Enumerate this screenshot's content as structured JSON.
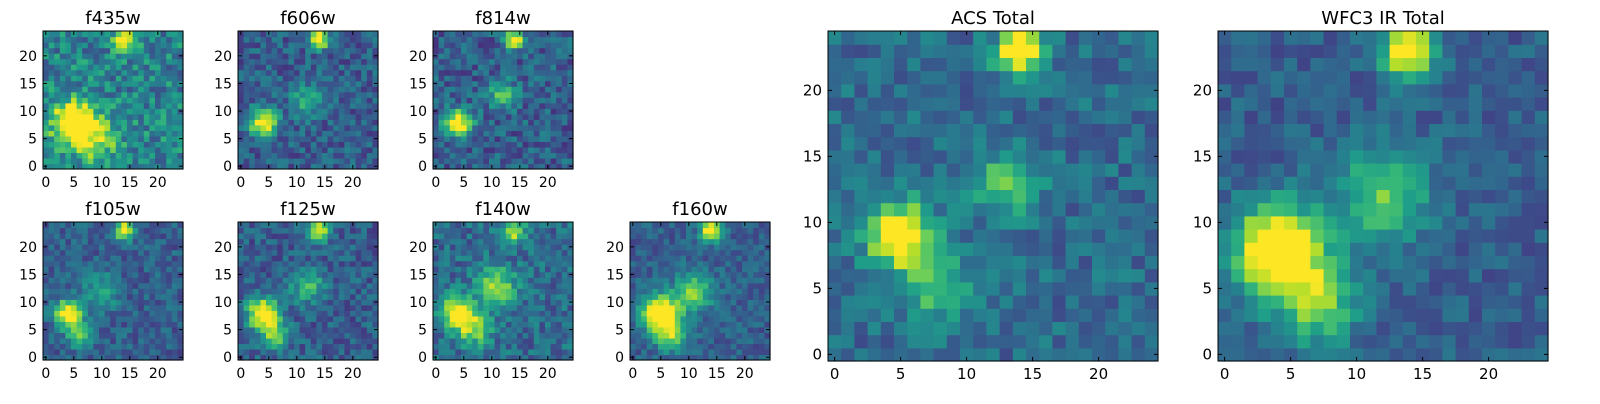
{
  "figure": {
    "colormap": [
      "#440154",
      "#482878",
      "#3e4989",
      "#31688e",
      "#26828e",
      "#1f9e89",
      "#35b779",
      "#6ece58",
      "#b5de2b",
      "#fde725"
    ]
  },
  "chart_data": [
    {
      "type": "heatmap",
      "title": "f435w",
      "xlim": [
        0,
        25
      ],
      "ylim": [
        0,
        25
      ],
      "xticks": [
        "0",
        "5",
        "10",
        "15",
        "20"
      ],
      "yticks": [
        "0",
        "5",
        "10",
        "15",
        "20"
      ],
      "grid": false,
      "sources": [
        {
          "x": 5,
          "y": 8,
          "amp": 0.9,
          "sigma": 2.6
        },
        {
          "x": 9,
          "y": 5,
          "amp": 0.4,
          "sigma": 2.8
        },
        {
          "x": 14,
          "y": 23,
          "amp": 0.7,
          "sigma": 1.3
        }
      ],
      "base": 0.45,
      "noise": 0.4,
      "seed": 11
    },
    {
      "type": "heatmap",
      "title": "f606w",
      "xlim": [
        0,
        25
      ],
      "ylim": [
        0,
        25
      ],
      "xticks": [
        "0",
        "5",
        "10",
        "15",
        "20"
      ],
      "yticks": [
        "0",
        "5",
        "10",
        "15",
        "20"
      ],
      "grid": false,
      "sources": [
        {
          "x": 4,
          "y": 8,
          "amp": 0.8,
          "sigma": 1.7
        },
        {
          "x": 12,
          "y": 12,
          "amp": 0.35,
          "sigma": 2.0
        },
        {
          "x": 14,
          "y": 23,
          "amp": 0.8,
          "sigma": 1.2
        }
      ],
      "base": 0.3,
      "noise": 0.3,
      "seed": 23
    },
    {
      "type": "heatmap",
      "title": "f814w",
      "xlim": [
        0,
        25
      ],
      "ylim": [
        0,
        25
      ],
      "xticks": [
        "0",
        "5",
        "10",
        "15",
        "20"
      ],
      "yticks": [
        "0",
        "5",
        "10",
        "15",
        "20"
      ],
      "grid": false,
      "sources": [
        {
          "x": 4,
          "y": 8,
          "amp": 0.8,
          "sigma": 1.7
        },
        {
          "x": 12,
          "y": 13,
          "amp": 0.4,
          "sigma": 1.8
        },
        {
          "x": 14,
          "y": 23,
          "amp": 0.8,
          "sigma": 1.2
        }
      ],
      "base": 0.3,
      "noise": 0.32,
      "seed": 37
    },
    {
      "type": "heatmap",
      "title": "f105w",
      "xlim": [
        0,
        25
      ],
      "ylim": [
        0,
        25
      ],
      "xticks": [
        "0",
        "5",
        "10",
        "15",
        "20"
      ],
      "yticks": [
        "0",
        "5",
        "10",
        "15",
        "20"
      ],
      "grid": false,
      "sources": [
        {
          "x": 4,
          "y": 8,
          "amp": 0.85,
          "sigma": 1.7
        },
        {
          "x": 6,
          "y": 4,
          "amp": 0.4,
          "sigma": 1.6
        },
        {
          "x": 10,
          "y": 12,
          "amp": 0.3,
          "sigma": 2.2
        },
        {
          "x": 14,
          "y": 23,
          "amp": 0.8,
          "sigma": 1.2
        }
      ],
      "base": 0.3,
      "noise": 0.25,
      "seed": 41
    },
    {
      "type": "heatmap",
      "title": "f125w",
      "xlim": [
        0,
        25
      ],
      "ylim": [
        0,
        25
      ],
      "xticks": [
        "0",
        "5",
        "10",
        "15",
        "20"
      ],
      "yticks": [
        "0",
        "5",
        "10",
        "15",
        "20"
      ],
      "grid": false,
      "sources": [
        {
          "x": 4,
          "y": 8,
          "amp": 0.9,
          "sigma": 1.9
        },
        {
          "x": 6,
          "y": 4,
          "amp": 0.45,
          "sigma": 1.8
        },
        {
          "x": 12,
          "y": 13,
          "amp": 0.35,
          "sigma": 2.2
        },
        {
          "x": 14,
          "y": 23,
          "amp": 0.75,
          "sigma": 1.3
        }
      ],
      "base": 0.3,
      "noise": 0.28,
      "seed": 53
    },
    {
      "type": "heatmap",
      "title": "f140w",
      "xlim": [
        0,
        25
      ],
      "ylim": [
        0,
        25
      ],
      "xticks": [
        "0",
        "5",
        "10",
        "15",
        "20"
      ],
      "yticks": [
        "0",
        "5",
        "10",
        "15",
        "20"
      ],
      "grid": false,
      "sources": [
        {
          "x": 4,
          "y": 8,
          "amp": 0.85,
          "sigma": 2.0
        },
        {
          "x": 7,
          "y": 5,
          "amp": 0.45,
          "sigma": 2.0
        },
        {
          "x": 11,
          "y": 13,
          "amp": 0.5,
          "sigma": 2.4
        },
        {
          "x": 14,
          "y": 23,
          "amp": 0.6,
          "sigma": 1.4
        }
      ],
      "base": 0.35,
      "noise": 0.3,
      "seed": 67
    },
    {
      "type": "heatmap",
      "title": "f160w",
      "xlim": [
        0,
        25
      ],
      "ylim": [
        0,
        25
      ],
      "xticks": [
        "0",
        "5",
        "10",
        "15",
        "20"
      ],
      "yticks": [
        "0",
        "5",
        "10",
        "15",
        "20"
      ],
      "grid": false,
      "sources": [
        {
          "x": 5,
          "y": 8,
          "amp": 0.95,
          "sigma": 2.3
        },
        {
          "x": 7,
          "y": 4,
          "amp": 0.5,
          "sigma": 2.0
        },
        {
          "x": 11,
          "y": 12,
          "amp": 0.5,
          "sigma": 2.4
        },
        {
          "x": 14,
          "y": 23,
          "amp": 0.85,
          "sigma": 1.3
        }
      ],
      "base": 0.3,
      "noise": 0.22,
      "seed": 79
    },
    {
      "type": "heatmap",
      "title": "ACS Total",
      "xlim": [
        0,
        25
      ],
      "ylim": [
        0,
        25
      ],
      "xticks": [
        "0",
        "5",
        "10",
        "15",
        "20"
      ],
      "yticks": [
        "0",
        "5",
        "10",
        "15",
        "20"
      ],
      "grid": false,
      "sources": [
        {
          "x": 5,
          "y": 9,
          "amp": 0.85,
          "sigma": 1.7
        },
        {
          "x": 8,
          "y": 5,
          "amp": 0.35,
          "sigma": 1.8
        },
        {
          "x": 13,
          "y": 13,
          "amp": 0.4,
          "sigma": 1.7
        },
        {
          "x": 14,
          "y": 23,
          "amp": 0.85,
          "sigma": 1.2
        }
      ],
      "base": 0.35,
      "noise": 0.25,
      "seed": 97
    },
    {
      "type": "heatmap",
      "title": "WFC3 IR Total",
      "xlim": [
        0,
        25
      ],
      "ylim": [
        0,
        25
      ],
      "xticks": [
        "0",
        "5",
        "10",
        "15",
        "20"
      ],
      "yticks": [
        "0",
        "5",
        "10",
        "15",
        "20"
      ],
      "grid": false,
      "sources": [
        {
          "x": 4,
          "y": 8,
          "amp": 0.95,
          "sigma": 2.3
        },
        {
          "x": 7,
          "y": 4,
          "amp": 0.5,
          "sigma": 2.2
        },
        {
          "x": 12,
          "y": 12,
          "amp": 0.45,
          "sigma": 2.5
        },
        {
          "x": 14,
          "y": 23,
          "amp": 0.85,
          "sigma": 1.4
        }
      ],
      "base": 0.3,
      "noise": 0.2,
      "seed": 113
    }
  ]
}
